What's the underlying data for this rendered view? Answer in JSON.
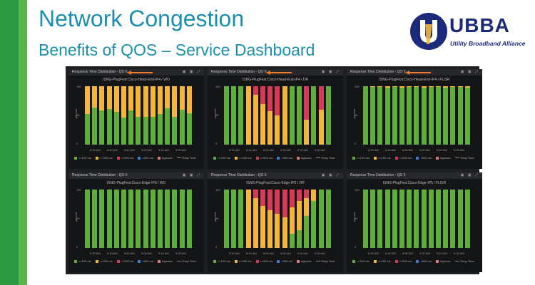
{
  "slide": {
    "title": "Network Congestion",
    "subtitle": "Benefits of QOS – Service Dashboard"
  },
  "logo": {
    "name": "UBBA",
    "tagline": "Utility Broadband Alliance"
  },
  "colors": {
    "green": "#5fae3b",
    "orange": "#f4b63a",
    "red": "#d63a57",
    "blue": "#3a7bd5",
    "arrow": "#f07a28"
  },
  "panel_icons": "▣ ▣ ⤢",
  "panels": [
    {
      "header": "Response Time Distribution - QO 6",
      "chart_title": "ISNG-PlugFest:Cisco-Head-End-IP4 / WO",
      "arrow": true,
      "chart_data": {
        "type": "bar",
        "stacked": true,
        "x_ticks": [
          "8:30 AM",
          "8:40 AM",
          "8:50 AM",
          "9:00 AM",
          "9:10 AM",
          "9:20 AM"
        ],
        "ylim": [
          0,
          100
        ],
        "series": [
          {
            "name": "<=100 ms",
            "values": [
              52,
              63,
              58,
              61,
              56,
              46,
              58,
              48,
              48,
              47,
              53,
              62,
              48,
              60,
              54
            ]
          },
          {
            "name": "<=200 ms",
            "values": [
              48,
              37,
              42,
              39,
              44,
              54,
              42,
              52,
              52,
              53,
              47,
              38,
              52,
              40,
              46
            ]
          },
          {
            "name": "<=500 ms",
            "values": [
              0,
              0,
              0,
              0,
              0,
              0,
              0,
              0,
              0,
              0,
              0,
              0,
              0,
              0,
              0
            ]
          }
        ]
      }
    },
    {
      "header": "Response Time Distribution - QO 9",
      "chart_title": "ISNG-PlugFest:Cisco-Head-End-IP4 / DR",
      "arrow": true,
      "chart_data": {
        "type": "bar",
        "stacked": true,
        "x_ticks": [
          "8:30 AM",
          "8:40 AM",
          "8:50 AM",
          "9:00 AM",
          "9:10 AM",
          "9:20 AM"
        ],
        "ylim": [
          0,
          100
        ],
        "series": [
          {
            "name": "<=100 ms",
            "values": [
              100,
              100,
              100,
              0,
              0,
              0,
              0,
              0,
              0,
              100,
              100,
              0,
              100,
              0,
              100
            ]
          },
          {
            "name": "<=200 ms",
            "values": [
              0,
              0,
              0,
              100,
              85,
              70,
              57,
              50,
              100,
              0,
              0,
              43,
              0,
              60,
              0
            ]
          },
          {
            "name": "<=500 ms",
            "values": [
              0,
              0,
              0,
              0,
              15,
              30,
              43,
              50,
              0,
              0,
              0,
              57,
              0,
              40,
              0
            ]
          }
        ]
      }
    },
    {
      "header": "Response Time Distribution - QO 5",
      "chart_title": "ISNG-PlugFest:Cisco-Head-End-IP4 / FLISR",
      "arrow": true,
      "chart_data": {
        "type": "bar",
        "stacked": true,
        "x_ticks": [
          "8:30 AM",
          "8:40 AM",
          "8:50 AM",
          "9:00 AM",
          "9:10 AM",
          "9:20 AM"
        ],
        "ylim": [
          0,
          100
        ],
        "series": [
          {
            "name": "<=100 ms",
            "values": [
              100,
              99,
              99,
              98,
              99,
              98,
              99,
              99,
              98,
              99,
              99,
              98,
              99,
              99,
              98
            ]
          },
          {
            "name": "<=200 ms",
            "values": [
              0,
              1,
              1,
              2,
              1,
              2,
              1,
              1,
              2,
              1,
              1,
              2,
              1,
              1,
              2
            ]
          },
          {
            "name": "<=500 ms",
            "values": [
              0,
              0,
              0,
              0,
              0,
              0,
              0,
              0,
              0,
              0,
              0,
              0,
              0,
              0,
              0
            ]
          }
        ]
      }
    },
    {
      "header": "Response Time Distribution - QO 6",
      "chart_title": "ISNG-PlugFest:Cisco-Edge-IP5 / WO",
      "arrow": false,
      "chart_data": {
        "type": "bar",
        "stacked": true,
        "x_ticks": [
          "8:30 AM",
          "8:40 AM",
          "8:50 AM",
          "9:00 AM",
          "9:10 AM",
          "9:20 AM"
        ],
        "ylim": [
          0,
          100
        ],
        "series": [
          {
            "name": "<=100 ms",
            "values": [
              100,
              100,
              100,
              100,
              100,
              100,
              100,
              100,
              100,
              100,
              100,
              100,
              100,
              100,
              100
            ]
          },
          {
            "name": "<=200 ms",
            "values": [
              0,
              0,
              0,
              0,
              0,
              0,
              0,
              0,
              0,
              0,
              0,
              0,
              0,
              0,
              0
            ]
          },
          {
            "name": "<=500 ms",
            "values": [
              0,
              0,
              0,
              0,
              0,
              0,
              0,
              0,
              0,
              0,
              0,
              0,
              0,
              0,
              0
            ]
          }
        ]
      }
    },
    {
      "header": "Response Time Distribution - QO 9",
      "chart_title": "ISNG-PlugFest:Cisco-Edge-IP5 / DR",
      "arrow": false,
      "chart_data": {
        "type": "bar",
        "stacked": true,
        "x_ticks": [
          "8:30 AM",
          "8:40 AM",
          "8:50 AM",
          "9:00 AM",
          "9:10 AM",
          "9:20 AM"
        ],
        "ylim": [
          0,
          100
        ],
        "series": [
          {
            "name": "<=100 ms",
            "values": [
              100,
              100,
              100,
              0,
              0,
              0,
              0,
              0,
              0,
              25,
              30,
              55,
              80,
              100,
              100
            ]
          },
          {
            "name": "<=200 ms",
            "values": [
              0,
              0,
              0,
              100,
              85,
              72,
              65,
              58,
              52,
              45,
              50,
              30,
              20,
              0,
              0
            ]
          },
          {
            "name": "<=500 ms",
            "values": [
              0,
              0,
              0,
              0,
              15,
              28,
              35,
              42,
              48,
              30,
              20,
              15,
              0,
              0,
              0
            ]
          }
        ]
      }
    },
    {
      "header": "Response Time Distribution - QO 5",
      "chart_title": "ISNG-PlugFest:Cisco-Edge-IP5 / FLISR",
      "arrow": false,
      "chart_data": {
        "type": "bar",
        "stacked": true,
        "x_ticks": [
          "8:30 AM",
          "8:40 AM",
          "8:50 AM",
          "9:00 AM",
          "9:10 AM",
          "9:20 AM"
        ],
        "ylim": [
          0,
          100
        ],
        "series": [
          {
            "name": "<=100 ms",
            "values": [
              100,
              100,
              100,
              100,
              100,
              100,
              100,
              100,
              100,
              100,
              100,
              100,
              100,
              100,
              100
            ]
          },
          {
            "name": "<=200 ms",
            "values": [
              0,
              0,
              0,
              0,
              0,
              0,
              0,
              0,
              0,
              0,
              0,
              0,
              0,
              0,
              0
            ]
          },
          {
            "name": "<=500 ms",
            "values": [
              0,
              0,
              0,
              0,
              0,
              0,
              0,
              0,
              0,
              0,
              0,
              0,
              0,
              0,
              0
            ]
          }
        ]
      }
    }
  ],
  "y_ticks": [
    "100",
    "50",
    "0"
  ],
  "y_axis_label": "percent",
  "legend": [
    "<=100 ms",
    "<=200 ms",
    "<=500 ms",
    ">500 ms",
    "Ageouts",
    "Resp Time"
  ]
}
